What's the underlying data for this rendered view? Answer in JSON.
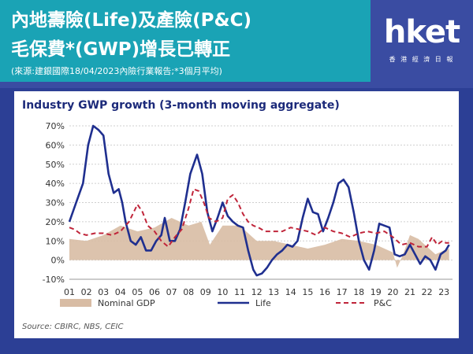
{
  "headline": {
    "line1": "內地壽險(Life)及產險(P&C)",
    "line2": "毛保費*(GWP)增長已轉正",
    "source": "(來源:建銀國際18/04/2023內險行業報告;*3個月平均)"
  },
  "logo": {
    "word": "hket",
    "sub": "香 港 經 濟 日 報"
  },
  "colors": {
    "background": "#2c3f95",
    "headline_band": "#1aa3b5",
    "nominal_gdp": "#d8bca4",
    "life": "#1f2f8f",
    "pc": "#c0253a"
  },
  "chart_data": {
    "type": "line",
    "title": "Industry GWP growth (3-month moving aggregate)",
    "source": "Source: CBIRC, NBS, CEIC",
    "x_ticks": [
      "01",
      "02",
      "03",
      "04",
      "05",
      "06",
      "07",
      "08",
      "09",
      "10",
      "11",
      "12",
      "13",
      "14",
      "15",
      "16",
      "17",
      "18",
      "19",
      "20",
      "21",
      "22",
      "23"
    ],
    "y_ticks": [
      "70%",
      "60%",
      "50%",
      "40%",
      "30%",
      "20%",
      "10%",
      "0%",
      "-10%"
    ],
    "ylim": [
      -10,
      70
    ],
    "xlim": [
      2001,
      2023.5
    ],
    "grid": true,
    "legend_position": "bottom",
    "series": [
      {
        "name": "Nominal GDP",
        "style": "area",
        "x": [
          2001,
          2002,
          2003,
          2004,
          2005,
          2006,
          2007,
          2008,
          2008.75,
          2009.25,
          2010,
          2011,
          2012,
          2013,
          2014,
          2015,
          2016,
          2017,
          2018,
          2019,
          2020,
          2020.25,
          2020.6,
          2021,
          2021.5,
          2022,
          2022.5,
          2023,
          2023.3
        ],
        "y": [
          11,
          10,
          13,
          18,
          15,
          17,
          22,
          18,
          20,
          8,
          18,
          18,
          10,
          10,
          8,
          6,
          8,
          11,
          10,
          8,
          4,
          -4,
          3,
          13,
          11,
          7,
          3,
          5,
          6
        ]
      },
      {
        "name": "Life",
        "style": "solid",
        "x": [
          2001,
          2001.4,
          2001.8,
          2002.1,
          2002.4,
          2002.7,
          2003,
          2003.3,
          2003.6,
          2003.9,
          2004.1,
          2004.3,
          2004.6,
          2004.9,
          2005.2,
          2005.5,
          2005.8,
          2006.1,
          2006.4,
          2006.6,
          2006.9,
          2007.2,
          2007.5,
          2007.8,
          2008.1,
          2008.5,
          2008.8,
          2009.1,
          2009.4,
          2009.7,
          2010,
          2010.3,
          2010.6,
          2010.9,
          2011.2,
          2011.5,
          2011.8,
          2012,
          2012.3,
          2012.6,
          2012.9,
          2013.2,
          2013.5,
          2013.8,
          2014.1,
          2014.4,
          2014.7,
          2015,
          2015.3,
          2015.6,
          2015.9,
          2016.2,
          2016.5,
          2016.8,
          2017.1,
          2017.4,
          2017.7,
          2018,
          2018.3,
          2018.6,
          2018.9,
          2019.2,
          2019.5,
          2019.8,
          2020.1,
          2020.4,
          2020.7,
          2021,
          2021.3,
          2021.6,
          2021.9,
          2022.2,
          2022.5,
          2022.8,
          2023.1,
          2023.3
        ],
        "y": [
          20,
          30,
          40,
          60,
          70,
          68,
          65,
          45,
          35,
          37,
          30,
          20,
          10,
          8,
          12,
          5,
          5,
          10,
          13,
          22,
          10,
          10,
          16,
          30,
          45,
          55,
          45,
          25,
          15,
          22,
          30,
          23,
          20,
          18,
          17,
          5,
          -5,
          -8,
          -7,
          -4,
          0,
          3,
          5,
          8,
          7,
          10,
          22,
          32,
          25,
          24,
          15,
          22,
          30,
          40,
          42,
          38,
          25,
          10,
          0,
          -5,
          5,
          19,
          18,
          17,
          3,
          2,
          3,
          8,
          3,
          -2,
          2,
          0,
          -5,
          3,
          5,
          8
        ]
      },
      {
        "name": "P&C",
        "style": "dashed",
        "x": [
          2001,
          2001.3,
          2001.6,
          2002,
          2002.5,
          2003,
          2003.5,
          2004,
          2004.5,
          2005,
          2005.3,
          2005.6,
          2006,
          2006.4,
          2006.8,
          2007.2,
          2007.6,
          2008,
          2008.3,
          2008.6,
          2008.9,
          2009.2,
          2009.6,
          2010,
          2010.3,
          2010.6,
          2010.9,
          2011.2,
          2011.5,
          2011.8,
          2012.1,
          2012.5,
          2013,
          2013.5,
          2014,
          2014.5,
          2015,
          2015.5,
          2016,
          2016.5,
          2017,
          2017.5,
          2018,
          2018.5,
          2019,
          2019.5,
          2020,
          2020.5,
          2021,
          2021.5,
          2022,
          2022.3,
          2022.6,
          2022.9,
          2023.1,
          2023.3
        ],
        "y": [
          17,
          16,
          14,
          13,
          14,
          14,
          13,
          15,
          20,
          29,
          25,
          18,
          15,
          10,
          7,
          12,
          16,
          27,
          37,
          36,
          30,
          22,
          20,
          22,
          32,
          34,
          30,
          24,
          20,
          18,
          17,
          15,
          15,
          15,
          17,
          16,
          15,
          13,
          17,
          15,
          14,
          12,
          14,
          15,
          14,
          15,
          12,
          8,
          9,
          7,
          7,
          12,
          8,
          10,
          9,
          9
        ]
      }
    ]
  }
}
